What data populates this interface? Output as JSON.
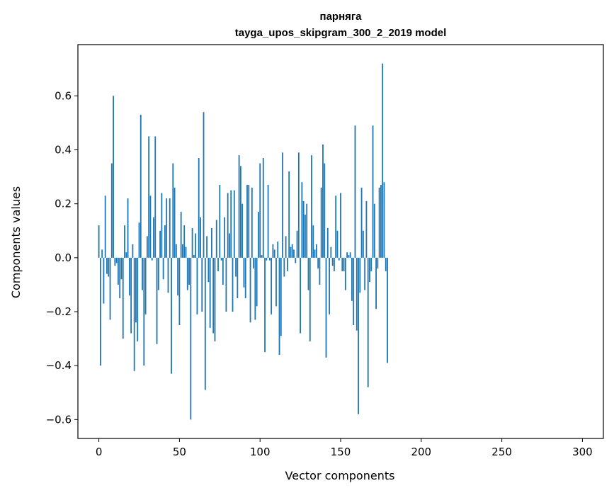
{
  "chart_data": {
    "type": "bar",
    "title": "парняга",
    "subtitle": "tayga_upos_skipgram_300_2_2019 model",
    "xlabel": "Vector components",
    "ylabel": "Components values",
    "xlim": [
      -13,
      313
    ],
    "ylim": [
      -0.67,
      0.79
    ],
    "x_ticks": [
      0,
      50,
      100,
      150,
      200,
      250,
      300
    ],
    "x_tick_labels": [
      "0",
      "50",
      "100",
      "150",
      "200",
      "250",
      "300"
    ],
    "y_ticks": [
      -0.6,
      -0.4,
      -0.2,
      0.0,
      0.2,
      0.4,
      0.6
    ],
    "y_tick_labels": [
      "−0.6",
      "−0.4",
      "−0.2",
      "0.0",
      "0.2",
      "0.4",
      "0.6"
    ],
    "grid": false,
    "bar_color": "#1f77b4",
    "x_start": 0,
    "values": [
      0.12,
      -0.4,
      0.03,
      -0.17,
      0.23,
      -0.06,
      -0.07,
      -0.23,
      0.35,
      0.6,
      -0.03,
      -0.02,
      -0.1,
      -0.15,
      -0.08,
      -0.3,
      0.12,
      0.02,
      0.22,
      -0.14,
      -0.28,
      0.05,
      -0.42,
      -0.24,
      -0.31,
      0.13,
      0.53,
      -0.12,
      -0.4,
      -0.21,
      0.08,
      0.45,
      0.23,
      -0.01,
      0.15,
      0.45,
      -0.32,
      -0.12,
      0.1,
      0.24,
      -0.08,
      0.12,
      0.22,
      -0.13,
      0.22,
      -0.43,
      0.35,
      0.26,
      0.05,
      -0.14,
      -0.25,
      0.17,
      0.05,
      0.12,
      0.04,
      -0.12,
      -0.1,
      -0.6,
      0.11,
      0.01,
      0.09,
      -0.21,
      0.37,
      0.15,
      -0.2,
      0.54,
      -0.49,
      0.08,
      -0.09,
      -0.26,
      0.11,
      -0.28,
      -0.31,
      0.14,
      -0.05,
      0.27,
      -0.01,
      -0.1,
      0.15,
      -0.2,
      0.24,
      0.09,
      0.25,
      -0.2,
      0.25,
      -0.07,
      -0.15,
      0.38,
      0.34,
      0.2,
      -0.11,
      -0.15,
      0.27,
      0.27,
      -0.24,
      0.26,
      -0.04,
      -0.23,
      -0.18,
      0.17,
      0.35,
      0.01,
      0.37,
      -0.35,
      -0.01,
      0.27,
      -0.01,
      -0.21,
      0.05,
      0.03,
      -0.18,
      0.06,
      -0.36,
      -0.29,
      0.39,
      -0.07,
      0.08,
      -0.05,
      0.32,
      0.04,
      0.05,
      0.03,
      -0.02,
      0.1,
      0.39,
      -0.28,
      0.28,
      0.21,
      0.16,
      0.2,
      -0.12,
      -0.31,
      0.38,
      0.12,
      0.03,
      0.05,
      -0.04,
      -0.1,
      0.26,
      0.42,
      0.35,
      -0.37,
      0.11,
      -0.21,
      0.04,
      -0.03,
      -0.05,
      0.23,
      0.1,
      -0.01,
      0.24,
      -0.05,
      -0.05,
      -0.12,
      0.02,
      0.01,
      0.02,
      -0.16,
      -0.25,
      0.49,
      -0.27,
      -0.58,
      -0.13,
      0.26,
      0.1,
      -0.12,
      0.21,
      -0.48,
      -0.09,
      -0.05,
      0.49,
      0.2,
      -0.19,
      -0.04,
      0.26,
      0.27,
      0.72,
      0.28,
      -0.05,
      -0.39
    ]
  }
}
